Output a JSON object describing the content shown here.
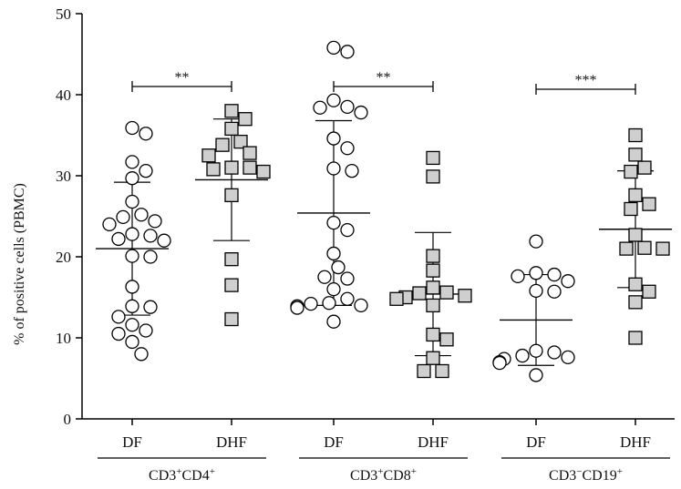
{
  "chart_data": {
    "type": "scatter",
    "ylabel": "% of positive cells (PBMC)",
    "ylim": [
      0,
      50
    ],
    "yticks": [
      0,
      10,
      20,
      30,
      40,
      50
    ],
    "groups": [
      {
        "name_main": "CD3",
        "name_sup1": "+",
        "name_mid": "CD4",
        "name_sup2": "+",
        "significance": "**",
        "series": [
          {
            "name": "DF",
            "marker": "circle",
            "mean": 21.0,
            "sd_low": 12.8,
            "sd_high": 29.2,
            "values": [
              35.9,
              35.2,
              31.7,
              30.6,
              29.7,
              26.8,
              25.2,
              24.9,
              24.4,
              24.0,
              22.8,
              22.6,
              22.2,
              22.0,
              20.1,
              20.0,
              16.3,
              13.9,
              13.8,
              12.6,
              11.6,
              10.9,
              10.5,
              9.5,
              8.0
            ]
          },
          {
            "name": "DHF",
            "marker": "square",
            "mean": 29.5,
            "sd_low": 22.0,
            "sd_high": 37.0,
            "values": [
              38.0,
              37.0,
              35.8,
              34.2,
              33.8,
              32.8,
              32.5,
              31.0,
              31.0,
              30.8,
              30.5,
              27.6,
              19.7,
              16.5,
              12.3
            ]
          }
        ]
      },
      {
        "name_main": "CD3",
        "name_sup1": "+",
        "name_mid": "CD8",
        "name_sup2": "+",
        "significance": "**",
        "series": [
          {
            "name": "DF",
            "marker": "circle",
            "mean": 25.4,
            "sd_low": 14.0,
            "sd_high": 36.8,
            "values": [
              45.8,
              45.3,
              39.3,
              38.5,
              38.4,
              37.8,
              34.6,
              33.4,
              30.9,
              30.6,
              24.2,
              23.3,
              20.4,
              18.7,
              17.5,
              17.3,
              16.0,
              14.8,
              14.3,
              14.2,
              14.0,
              13.9,
              13.7,
              12.0
            ]
          },
          {
            "name": "DHF",
            "marker": "square",
            "mean": 15.4,
            "sd_low": 7.8,
            "sd_high": 23.0,
            "values": [
              32.2,
              29.9,
              20.1,
              18.3,
              16.2,
              15.6,
              15.5,
              15.2,
              15.0,
              14.8,
              14.0,
              10.4,
              9.8,
              7.5,
              5.9,
              5.9
            ]
          }
        ]
      },
      {
        "name_main": "CD3",
        "name_sup1": "−",
        "name_mid": "CD19",
        "name_sup2": "+",
        "significance": "***",
        "series": [
          {
            "name": "DF",
            "marker": "circle",
            "mean": 12.2,
            "sd_low": 6.6,
            "sd_high": 17.8,
            "values": [
              21.9,
              18.0,
              17.8,
              17.6,
              17.0,
              15.8,
              15.7,
              8.4,
              8.2,
              7.8,
              7.6,
              7.4,
              7.0,
              6.9,
              5.4
            ]
          },
          {
            "name": "DHF",
            "marker": "square",
            "mean": 23.4,
            "sd_low": 16.2,
            "sd_high": 30.6,
            "values": [
              35.0,
              32.6,
              31.0,
              30.5,
              27.6,
              26.5,
              25.9,
              22.7,
              21.1,
              21.0,
              21.0,
              16.6,
              15.7,
              14.4,
              10.0
            ]
          }
        ]
      }
    ]
  }
}
